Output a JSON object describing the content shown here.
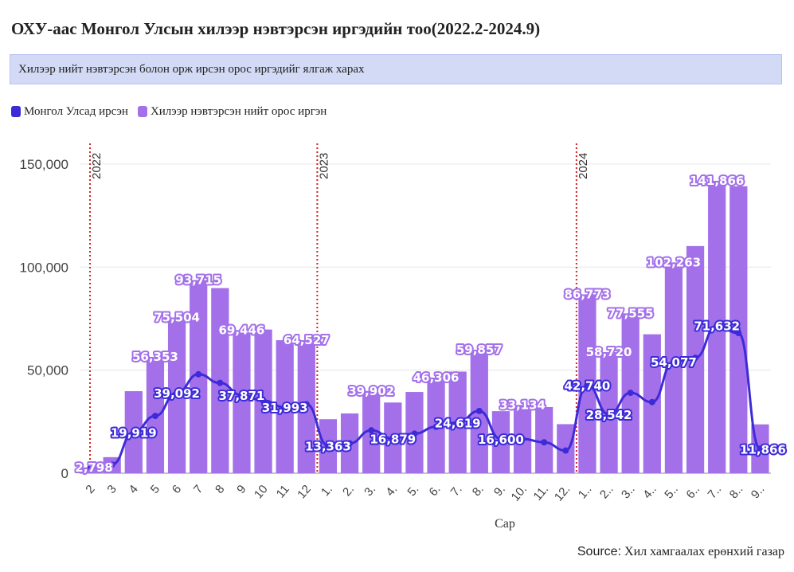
{
  "title": "ОХУ-аас Монгол Улсын хилээр нэвтэрсэн иргэдийн тоо(2022.2-2024.9)",
  "subtitle": "Хилээр нийт нэвтэрсэн болон орж ирсэн орос иргэдийг ялгаж харах",
  "source_label": "Source:",
  "source_text": "Хил хамгаалах ерөнхий газар",
  "colors": {
    "bar": "#a370ea",
    "line": "#3d2bd8",
    "year_line": "#d92020",
    "grid": "#e6e6e6",
    "label_bar_fill": "#ffffff",
    "label_bar_stroke": "#a370ea",
    "label_line_stroke": "#3d2bd8"
  },
  "chart_data": {
    "type": "bar+line",
    "xlabel": "Сар",
    "ylabel": "",
    "ylim": [
      0,
      160000
    ],
    "y_ticks": [
      "0",
      "50,000",
      "100,000",
      "150,000"
    ],
    "y_tick_values": [
      0,
      50000,
      100000,
      150000
    ],
    "grid": true,
    "legend_position": "top-left",
    "categories": [
      "2",
      "3",
      "4",
      "5",
      "6",
      "7",
      "8",
      "9",
      "10",
      "11",
      "12",
      "1.",
      "2.",
      "3.",
      "4.",
      "5.",
      "6.",
      "7.",
      "8.",
      "9.",
      "10.",
      "11.",
      "12.",
      "1..",
      "2..",
      "3..",
      "4..",
      "5..",
      "6..",
      "7..",
      "8..",
      "9.."
    ],
    "series": [
      {
        "name": "Монгол Улсад ирсэн",
        "kind": "line",
        "values": [
          2798,
          4200,
          19919,
          27800,
          39092,
          48000,
          43800,
          37871,
          35200,
          31993,
          33500,
          13363,
          14500,
          20800,
          16879,
          19200,
          22500,
          24619,
          30200,
          16600,
          16600,
          15000,
          11000,
          42740,
          28542,
          39000,
          34500,
          54077,
          56000,
          71632,
          68000,
          11866
        ]
      },
      {
        "name": "Хилээр нэвтэрсэн нийт орос иргэн",
        "kind": "bar",
        "values": [
          2798,
          7800,
          39800,
          56353,
          75504,
          93715,
          89800,
          69446,
          69700,
          64527,
          64527,
          26200,
          29000,
          39902,
          34300,
          39400,
          46306,
          49300,
          59857,
          30100,
          33134,
          32100,
          23800,
          86773,
          58720,
          77555,
          67400,
          102263,
          110200,
          141866,
          139200,
          23700
        ]
      }
    ],
    "year_markers": [
      {
        "label": "2022",
        "at_index": 0
      },
      {
        "label": "2023",
        "at_index": 11
      },
      {
        "label": "2024",
        "at_index": 23
      }
    ],
    "bar_labels": [
      {
        "i": 0,
        "text": "2,798"
      },
      {
        "i": 3,
        "text": "56,353"
      },
      {
        "i": 4,
        "text": "75,504"
      },
      {
        "i": 5,
        "text": "93,715"
      },
      {
        "i": 7,
        "text": "69,446"
      },
      {
        "i": 10,
        "text": "64,527"
      },
      {
        "i": 13,
        "text": "39,902"
      },
      {
        "i": 16,
        "text": "46,306"
      },
      {
        "i": 18,
        "text": "59,857"
      },
      {
        "i": 20,
        "text": "33,134"
      },
      {
        "i": 23,
        "text": "86,773"
      },
      {
        "i": 24,
        "text": "58,720"
      },
      {
        "i": 25,
        "text": "77,555"
      },
      {
        "i": 27,
        "text": "102,263"
      },
      {
        "i": 29,
        "text": "141,866"
      }
    ],
    "line_labels": [
      {
        "i": 2,
        "text": "19,919"
      },
      {
        "i": 4,
        "text": "39,092"
      },
      {
        "i": 7,
        "text": "37,871"
      },
      {
        "i": 9,
        "text": "31,993"
      },
      {
        "i": 11,
        "text": "13,363"
      },
      {
        "i": 14,
        "text": "16,879"
      },
      {
        "i": 17,
        "text": "24,619"
      },
      {
        "i": 19,
        "text": "16,600"
      },
      {
        "i": 23,
        "text": "42,740"
      },
      {
        "i": 24,
        "text": "28,542"
      },
      {
        "i": 27,
        "text": "54,077"
      },
      {
        "i": 29,
        "text": "71,632"
      },
      {
        "i": 31,
        "text": "11,866"
      }
    ]
  }
}
